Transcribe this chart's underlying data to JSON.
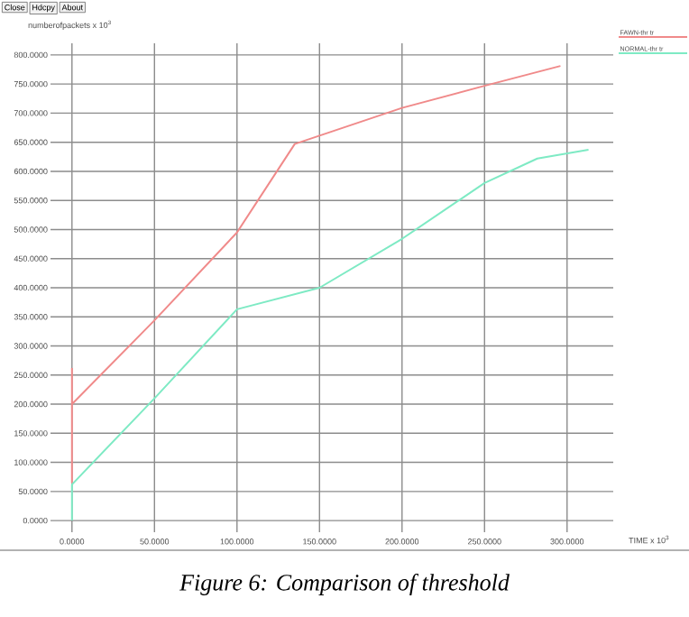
{
  "chart_data": {
    "type": "line",
    "ylabel": "numberofpackets x 10$^{3}$",
    "xlabel": "TIME x 10$^{3}$",
    "annotations": [
      "Close",
      "Hdcpy",
      "About",
      "Figure 6: Comparison of threshold"
    ],
    "series": [
      {
        "name": "FAWN-thr tr",
        "color": "#f08a8a",
        "x": [
          0,
          0,
          0,
          50,
          100,
          135,
          200,
          250,
          296
        ],
        "values": [
          262,
          65,
          200,
          344,
          495,
          647,
          709,
          747,
          781
        ]
      },
      {
        "name": "NORMAL-thr tr",
        "color": "#7eeac4",
        "x": [
          0,
          0,
          50,
          100,
          150,
          200,
          250,
          282,
          313
        ],
        "values": [
          0,
          62,
          210,
          363,
          400,
          484,
          580,
          622,
          637
        ]
      }
    ],
    "xlim": [
      -13,
      328
    ],
    "ylim": [
      -20,
      820
    ],
    "xticks": [
      {
        "value": 0,
        "label": "0.0000"
      },
      {
        "value": 50,
        "label": "50.0000"
      },
      {
        "value": 100,
        "label": "100.0000"
      },
      {
        "value": 150,
        "label": "150.0000"
      },
      {
        "value": 200,
        "label": "200.0000"
      },
      {
        "value": 250,
        "label": "250.0000"
      },
      {
        "value": 300,
        "label": "300.0000"
      }
    ],
    "yticks": [
      {
        "value": 0,
        "label": "0.0000"
      },
      {
        "value": 50,
        "label": "50.0000"
      },
      {
        "value": 100,
        "label": "100.0000"
      },
      {
        "value": 150,
        "label": "150.0000"
      },
      {
        "value": 200,
        "label": "200.0000"
      },
      {
        "value": 250,
        "label": "250.0000"
      },
      {
        "value": 300,
        "label": "300.0000"
      },
      {
        "value": 350,
        "label": "350.0000"
      },
      {
        "value": 400,
        "label": "400.0000"
      },
      {
        "value": 450,
        "label": "450.0000"
      },
      {
        "value": 500,
        "label": "500.0000"
      },
      {
        "value": 550,
        "label": "550.0000"
      },
      {
        "value": 600,
        "label": "600.0000"
      },
      {
        "value": 650,
        "label": "650.0000"
      },
      {
        "value": 700,
        "label": "700.0000"
      },
      {
        "value": 750,
        "label": "750.0000"
      },
      {
        "value": 800,
        "label": "800.0000"
      }
    ],
    "grid": true,
    "legend": "top right",
    "marker": "none",
    "line_style": "solid"
  }
}
